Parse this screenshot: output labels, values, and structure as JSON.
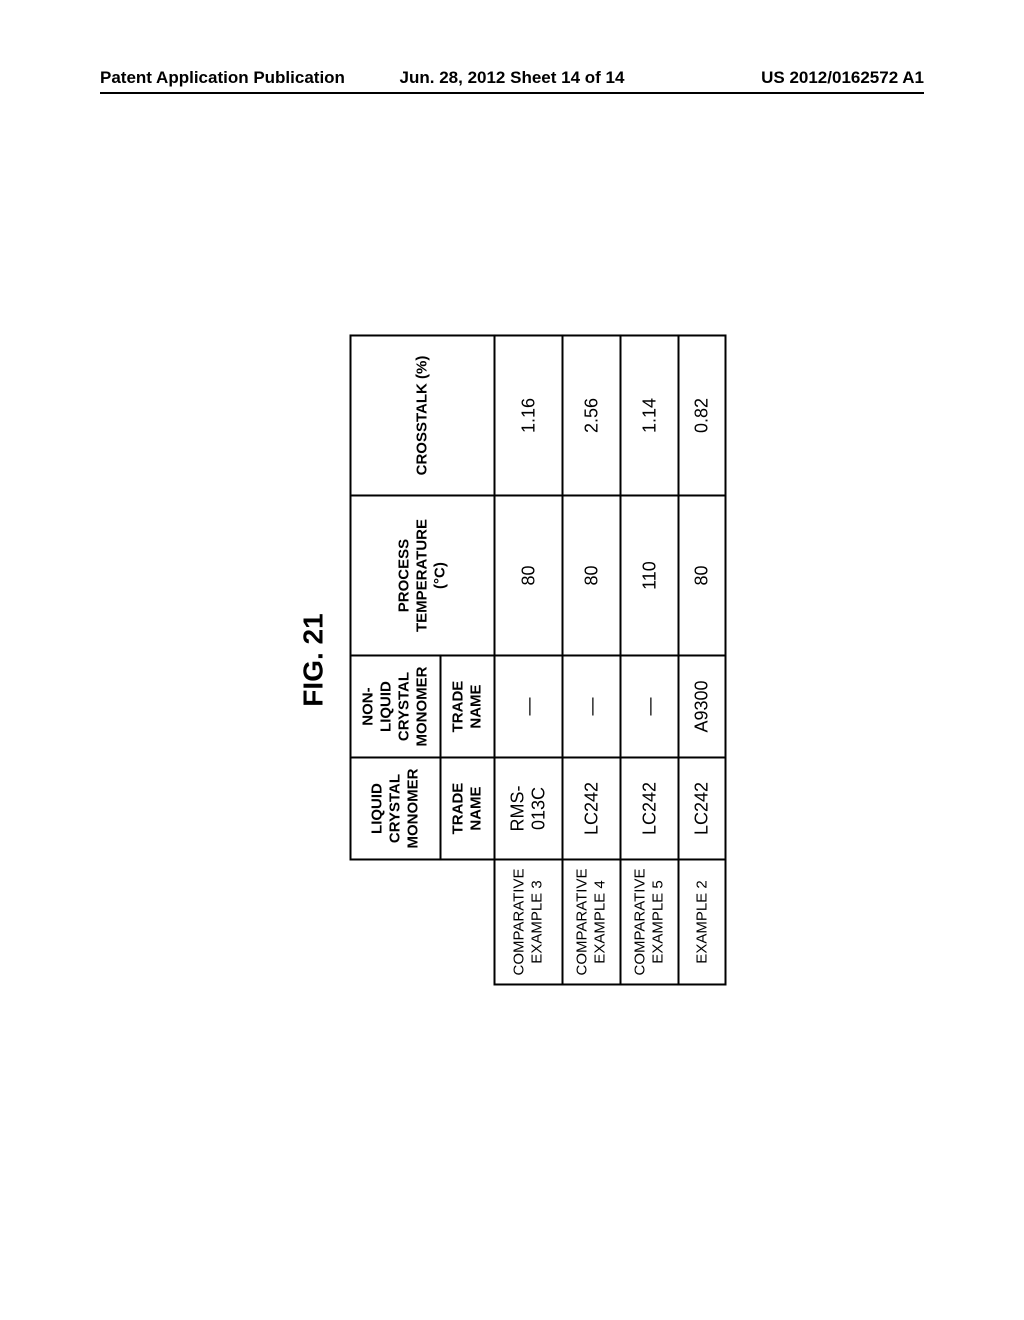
{
  "header": {
    "left": "Patent Application Publication",
    "center": "Jun. 28, 2012  Sheet 14 of 14",
    "right": "US 2012/0162572 A1"
  },
  "figure": {
    "label": "FIG. 21"
  },
  "table": {
    "corner_blank": "",
    "col_headers": {
      "liquid_crystal_monomer": "LIQUID CRYSTAL MONOMER",
      "non_liquid_crystal_monomer": "NON-LIQUID CRYSTAL MONOMER",
      "process_temperature": "PROCESS TEMPERATURE (°C)",
      "crosstalk": "CROSSTALK (%)"
    },
    "sub_headers": {
      "trade_name_1": "TRADE NAME",
      "trade_name_2": "TRADE NAME"
    },
    "rows": [
      {
        "label": "COMPARATIVE EXAMPLE 3",
        "liquid": "RMS-013C",
        "nonliquid": "—",
        "temp": "80",
        "crosstalk": "1.16"
      },
      {
        "label": "COMPARATIVE EXAMPLE 4",
        "liquid": "LC242",
        "nonliquid": "—",
        "temp": "80",
        "crosstalk": "2.56"
      },
      {
        "label": "COMPARATIVE EXAMPLE 5",
        "liquid": "LC242",
        "nonliquid": "—",
        "temp": "110",
        "crosstalk": "1.14"
      },
      {
        "label": "EXAMPLE 2",
        "liquid": "LC242",
        "nonliquid": "A9300",
        "temp": "80",
        "crosstalk": "0.82"
      }
    ]
  },
  "styling": {
    "page_bg": "#ffffff",
    "text_color": "#000000",
    "border_color": "#000000",
    "header_fontsize": 17,
    "figure_label_fontsize": 28,
    "table_fontsize": 18,
    "table_header_fontsize": 15,
    "border_width": 2
  }
}
